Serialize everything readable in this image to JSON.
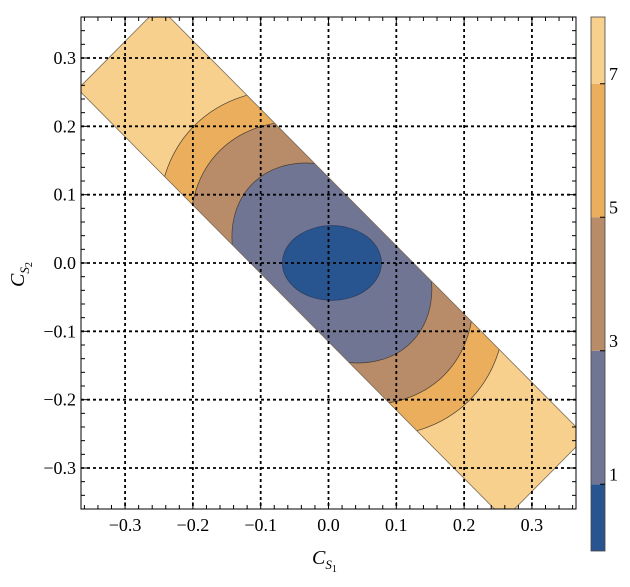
{
  "chart_data": {
    "type": "contour",
    "x_label": {
      "main": "C",
      "sub": "S",
      "subsub": "1"
    },
    "y_label": {
      "main": "C",
      "sub": "S",
      "subsub": "2"
    },
    "xlim": [
      -0.365,
      0.365
    ],
    "ylim": [
      -0.36,
      0.36
    ],
    "x_ticks": [
      -0.3,
      -0.2,
      -0.1,
      0.0,
      0.1,
      0.2,
      0.3
    ],
    "x_tick_labels": [
      "−0.3",
      "−0.2",
      "−0.1",
      "0.0",
      "0.1",
      "0.2",
      "0.3"
    ],
    "y_ticks": [
      -0.3,
      -0.2,
      -0.1,
      0.0,
      0.1,
      0.2,
      0.3
    ],
    "y_tick_labels": [
      "−0.3",
      "−0.2",
      "−0.1",
      "0.0",
      "0.1",
      "0.2",
      "0.3"
    ],
    "grid": "dashed",
    "band": {
      "direction": [
        1,
        -1
      ],
      "half_width": 0.085,
      "extent_s": [
        -0.445,
        0.445
      ],
      "center": [
        0.005,
        0.0
      ]
    },
    "contour_field": {
      "center": [
        0.005,
        0.0
      ],
      "semi_axes": [
        0.073,
        0.055
      ],
      "scale_along_band": 0.117,
      "scale_across_band": 0.0897,
      "note": "value = 1 at inner ellipse boundary"
    },
    "levels": [
      0,
      1,
      3,
      5,
      7,
      8
    ],
    "level_colors": [
      "#285590",
      "#6f7593",
      "#b88c68",
      "#eaae5c",
      "#f7d08e"
    ],
    "colorbar": {
      "range": [
        0,
        8
      ],
      "tick_values": [
        1,
        3,
        5,
        7
      ],
      "tick_labels": [
        "1",
        "3",
        "5",
        "7"
      ],
      "colors": [
        "#285590",
        "#6f7593",
        "#b88c68",
        "#eaae5c",
        "#f7d08e"
      ]
    }
  }
}
